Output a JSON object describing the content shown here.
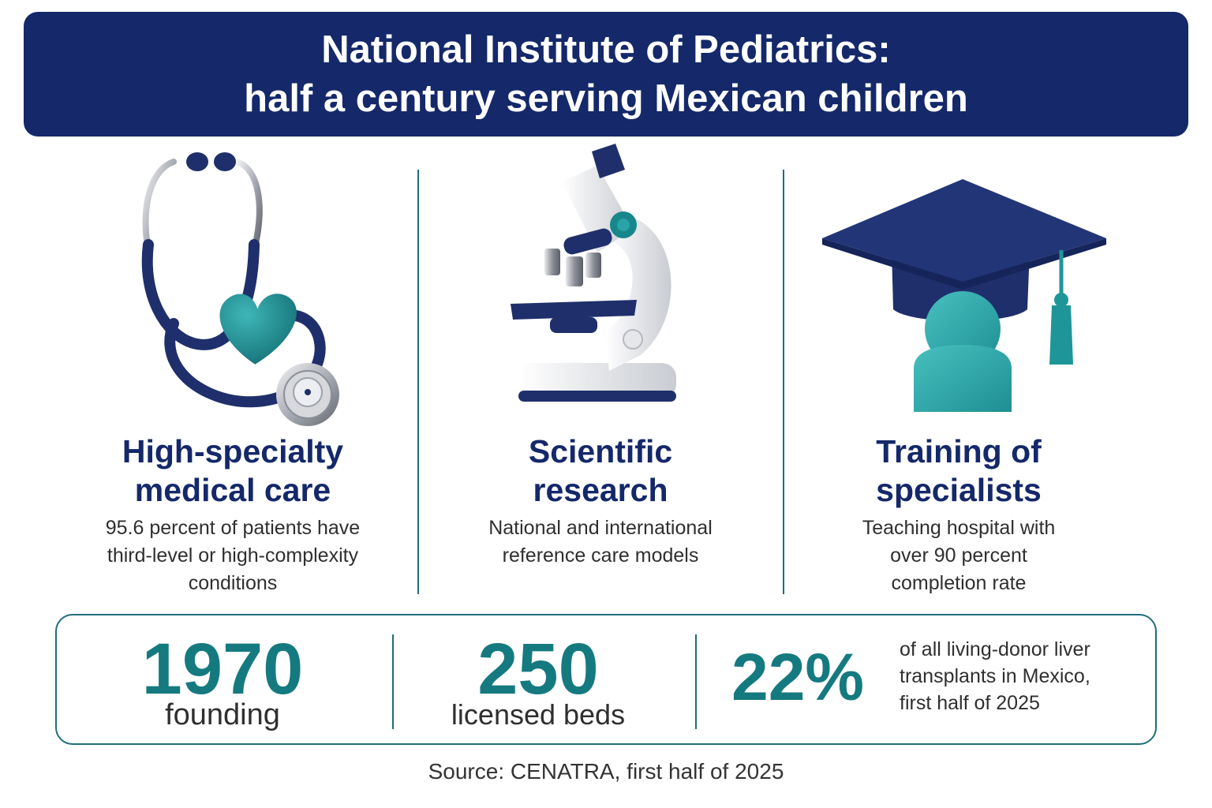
{
  "header": {
    "title_line1": "National Institute of Pediatrics:",
    "title_line2": "half a century serving Mexican children"
  },
  "colors": {
    "navy": "#14286a",
    "teal": "#157a80",
    "teal_light": "#2aa3a6"
  },
  "columns": [
    {
      "icon": "stethoscope-heart-icon",
      "title_line1": "High-specialty",
      "title_line2": "medical care",
      "desc_line1": "95.6 percent of patients have",
      "desc_line2": "third-level or high-complexity",
      "desc_line3": "conditions"
    },
    {
      "icon": "microscope-icon",
      "title_line1": "Scientific",
      "title_line2": "research",
      "desc_line1": "National and international",
      "desc_line2": "reference care models"
    },
    {
      "icon": "graduation-cap-icon",
      "title_line1": "Training of",
      "title_line2": "specialists",
      "desc_line1": "Teaching hospital with",
      "desc_line2": "over 90 percent",
      "desc_line3": "completion rate"
    }
  ],
  "stats": [
    {
      "value": "1970",
      "label": "founding"
    },
    {
      "value": "250",
      "label": "licensed beds"
    },
    {
      "value": "22%",
      "label_line1": "of all living-donor liver",
      "label_line2": "transplants in Mexico,",
      "label_line3": "first half of 2025"
    }
  ],
  "source": "Source: CENATRA, first half of 2025"
}
